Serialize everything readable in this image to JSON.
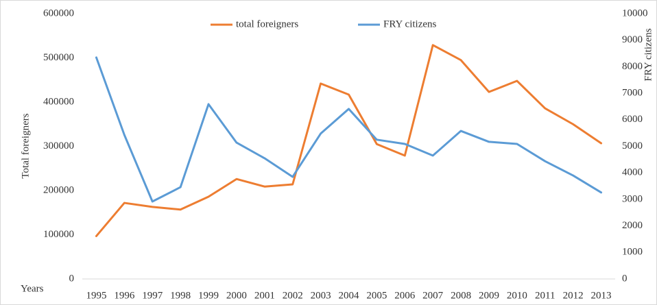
{
  "chart_data": {
    "type": "line",
    "y_label": "Total foreigners",
    "y2_label": "FRY citizens",
    "x_label": "Years",
    "categories": [
      "1995",
      "1996",
      "1997",
      "1998",
      "1999",
      "2000",
      "2001",
      "2002",
      "2003",
      "2004",
      "2005",
      "2006",
      "2007",
      "2008",
      "2009",
      "2010",
      "2011",
      "2012",
      "2013"
    ],
    "series": [
      {
        "name": "total foreigners",
        "color": "#ed7d31",
        "values": [
          97000,
          172000,
          163000,
          157000,
          186000,
          226000,
          209000,
          214000,
          442000,
          417000,
          305000,
          279000,
          529000,
          495000,
          423000,
          448000,
          386000,
          350000,
          307000
        ]
      },
      {
        "name": "FRY citizens",
        "color": "#5b9bd5",
        "axis": "y2",
        "values": [
          8350,
          5430,
          2920,
          3460,
          6590,
          5140,
          4550,
          3850,
          5480,
          6410,
          5250,
          5090,
          4650,
          5580,
          5170,
          5090,
          4440,
          3900,
          3260
        ]
      }
    ],
    "ylim": [
      0,
      600000
    ],
    "yticks": [
      0,
      100000,
      200000,
      300000,
      400000,
      500000,
      600000
    ],
    "y2lim": [
      0,
      10000
    ],
    "y2ticks": [
      0,
      1000,
      2000,
      3000,
      4000,
      5000,
      6000,
      7000,
      8000,
      9000,
      10000
    ],
    "legend": "top"
  }
}
